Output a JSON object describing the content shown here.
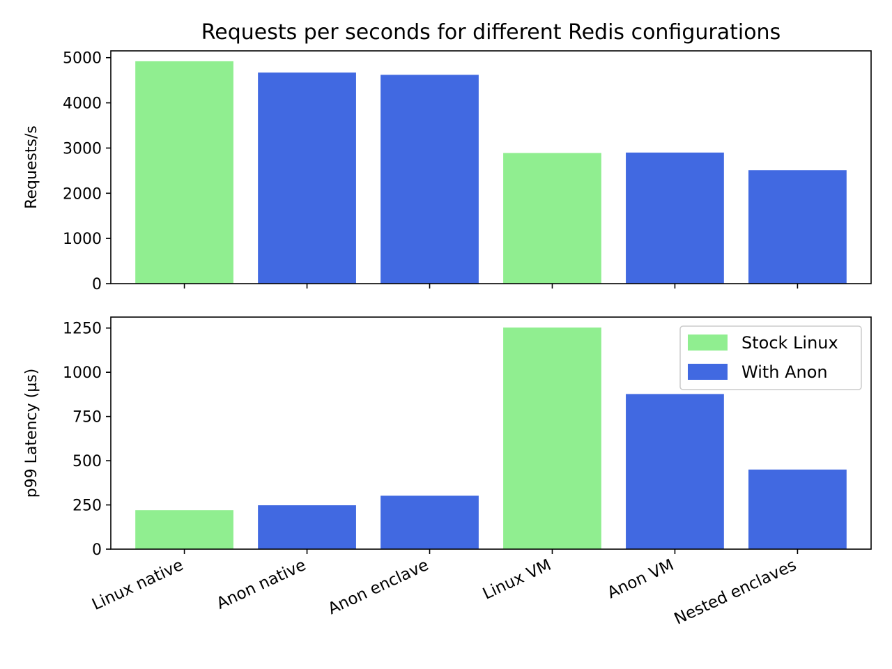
{
  "colors": {
    "stock": "#90EE90",
    "anon": "#4169E1"
  },
  "chart_data": [
    {
      "type": "bar",
      "title": "Requests per seconds for different Redis configurations",
      "ylabel": "Requests/s",
      "ylim": [
        0,
        5150
      ],
      "yticks": [
        0,
        1000,
        2000,
        3000,
        4000,
        5000
      ],
      "yticklabels": [
        "0",
        "1000",
        "2000",
        "3000",
        "4000",
        "5000"
      ],
      "categories": [
        "Linux native",
        "Anon native",
        "Anon enclave",
        "Linux VM",
        "Anon VM",
        "Nested enclaves"
      ],
      "values": [
        4920,
        4670,
        4620,
        2890,
        2900,
        2510
      ],
      "groups": [
        "stock",
        "anon",
        "anon",
        "stock",
        "anon",
        "anon"
      ],
      "show_xticklabels": false
    },
    {
      "type": "bar",
      "title": "",
      "ylabel": "p99 Latency (µs)",
      "ylim": [
        0,
        1312
      ],
      "yticks": [
        0,
        250,
        500,
        750,
        1000,
        1250
      ],
      "yticklabels": [
        "0",
        "250",
        "500",
        "750",
        "1000",
        "1250"
      ],
      "categories": [
        "Linux native",
        "Anon native",
        "Anon enclave",
        "Linux VM",
        "Anon VM",
        "Nested enclaves"
      ],
      "values": [
        220,
        248,
        302,
        1253,
        877,
        450
      ],
      "groups": [
        "stock",
        "anon",
        "anon",
        "stock",
        "anon",
        "anon"
      ],
      "show_xticklabels": true,
      "legend": {
        "position": "top-right",
        "entries": [
          {
            "label": "Stock Linux",
            "group": "stock"
          },
          {
            "label": "With Anon",
            "group": "anon"
          }
        ]
      }
    }
  ]
}
